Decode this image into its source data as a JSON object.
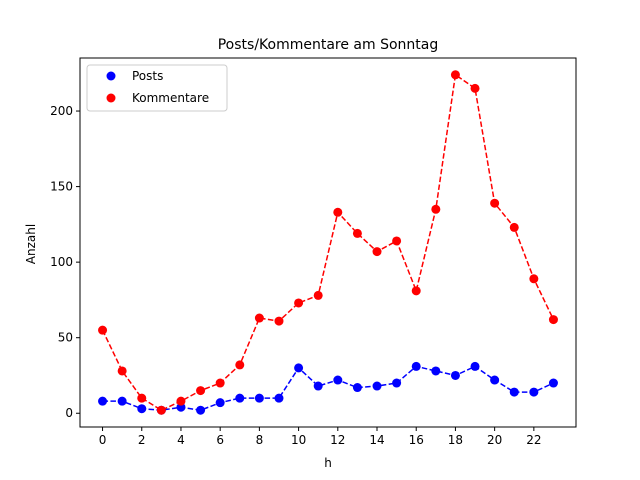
{
  "chart_data": {
    "type": "line",
    "title": "Posts/Kommentare am Sonntag",
    "xlabel": "h",
    "ylabel": "Anzahl",
    "x": [
      0,
      1,
      2,
      3,
      4,
      5,
      6,
      7,
      8,
      9,
      10,
      11,
      12,
      13,
      14,
      15,
      16,
      17,
      18,
      19,
      20,
      21,
      22,
      23
    ],
    "xticks": [
      0,
      2,
      4,
      6,
      8,
      10,
      12,
      14,
      16,
      18,
      20,
      22
    ],
    "yticks": [
      0,
      50,
      100,
      150,
      200
    ],
    "xlim": [
      -1.15,
      24.15
    ],
    "ylim": [
      -9.1,
      235.1
    ],
    "grid": false,
    "legend_position": "upper-left",
    "series": [
      {
        "name": "Posts",
        "color": "#0000ff",
        "line_style": "dashed",
        "marker": "circle",
        "values": [
          8,
          8,
          3,
          2,
          4,
          2,
          7,
          10,
          10,
          10,
          30,
          18,
          22,
          17,
          18,
          20,
          31,
          28,
          25,
          31,
          22,
          14,
          14,
          20
        ]
      },
      {
        "name": "Kommentare",
        "color": "#ff0000",
        "line_style": "dashed",
        "marker": "circle",
        "values": [
          55,
          28,
          10,
          2,
          8,
          15,
          20,
          32,
          63,
          61,
          73,
          78,
          133,
          119,
          107,
          114,
          81,
          135,
          224,
          215,
          139,
          123,
          89,
          62
        ]
      }
    ]
  }
}
